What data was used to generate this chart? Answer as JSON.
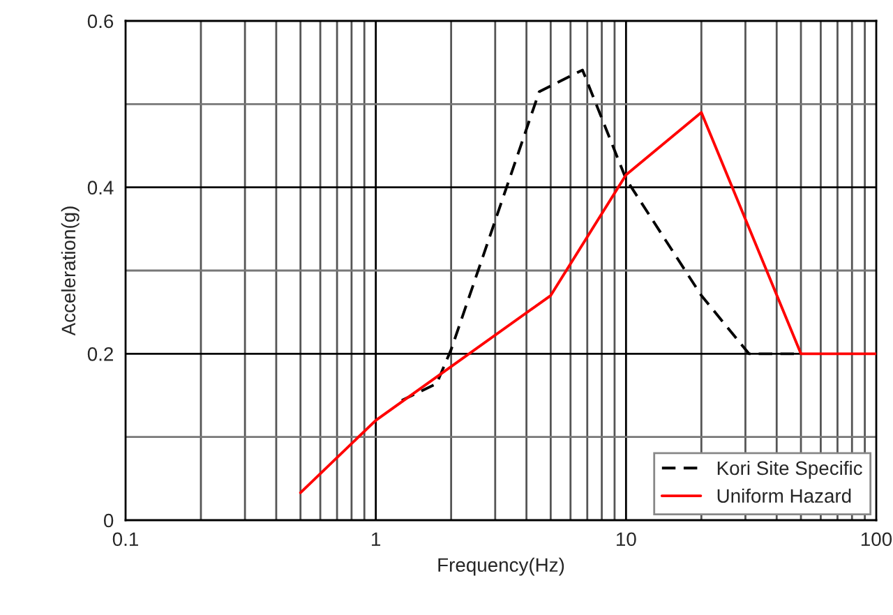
{
  "chart_data": {
    "type": "line",
    "xlabel": "Frequency(Hz)",
    "ylabel": "Acceleration(g)",
    "log": "x",
    "xlim": [
      0.1,
      100
    ],
    "xticks": [
      0.1,
      1,
      10,
      100
    ],
    "ylim": [
      0,
      0.6
    ],
    "yticks": [
      0,
      0.2,
      0.4,
      0.6
    ],
    "grid": true,
    "legend": "bottom right",
    "series": [
      {
        "name": "Kori Site Specific",
        "color": "#000000",
        "line_style": "dashed",
        "x": [
          1.27,
          1.75,
          2,
          4.5,
          6.7,
          10,
          20,
          31,
          50
        ],
        "values": [
          0.144,
          0.164,
          0.205,
          0.515,
          0.541,
          0.41,
          0.27,
          0.2,
          0.2
        ]
      },
      {
        "name": "Uniform Hazard",
        "color": "#ff0000",
        "line_style": "solid",
        "x": [
          0.5,
          1,
          5,
          10,
          20,
          50,
          100
        ],
        "values": [
          0.033,
          0.12,
          0.27,
          0.415,
          0.49,
          0.2,
          0.2
        ]
      }
    ]
  }
}
